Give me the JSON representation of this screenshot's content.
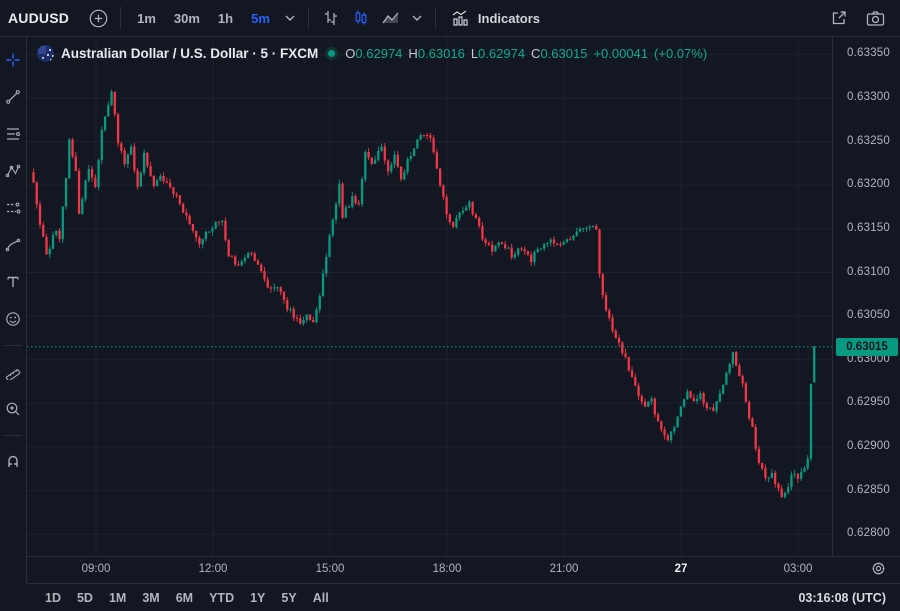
{
  "topbar": {
    "symbol": "AUDUSD",
    "intervals": [
      {
        "label": "1m",
        "active": false
      },
      {
        "label": "30m",
        "active": false
      },
      {
        "label": "1h",
        "active": false
      },
      {
        "label": "5m",
        "active": true
      }
    ],
    "indicators_label": "Indicators"
  },
  "legend": {
    "title_line": "Australian Dollar / U.S. Dollar · 5 · FXCM",
    "market_status": "open",
    "ohlc": {
      "o_label": "O",
      "o_value": "0.62974",
      "h_label": "H",
      "h_value": "0.63016",
      "l_label": "L",
      "l_value": "0.62974",
      "c_label": "C",
      "c_value": "0.63015",
      "change": "+0.00041",
      "change_pct": "(+0.07%)"
    }
  },
  "price_axis": {
    "labels": [
      "0.63350",
      "0.63300",
      "0.63250",
      "0.63200",
      "0.63150",
      "0.63100",
      "0.63050",
      "0.63000",
      "0.62950",
      "0.62900",
      "0.62850",
      "0.62800"
    ],
    "current_price_label": "0.63015"
  },
  "time_axis": {
    "labels": [
      {
        "text": "09:00",
        "emphasis": false
      },
      {
        "text": "12:00",
        "emphasis": false
      },
      {
        "text": "15:00",
        "emphasis": false
      },
      {
        "text": "18:00",
        "emphasis": false
      },
      {
        "text": "21:00",
        "emphasis": false
      },
      {
        "text": "27",
        "emphasis": true
      },
      {
        "text": "03:00",
        "emphasis": false
      }
    ]
  },
  "bottombar": {
    "ranges": [
      "1D",
      "5D",
      "1M",
      "3M",
      "6M",
      "YTD",
      "1Y",
      "5Y",
      "All"
    ],
    "clock": "03:16:08 (UTC)"
  },
  "sidebar": {
    "tools": [
      "crosshair",
      "trend-line",
      "fib-retracement",
      "xabcd-pattern",
      "forecast",
      "arc",
      "text",
      "emoji",
      "divider",
      "ruler",
      "zoom-in",
      "divider",
      "magnet"
    ]
  },
  "colors": {
    "background": "#131722",
    "grid": "#1e2230",
    "up": "#089981",
    "down": "#f23645",
    "accent_blue": "#2962ff",
    "badge_bg": "#089981",
    "axis_text": "#b2b5be"
  },
  "chart_data": {
    "type": "candlestick",
    "title": "Australian Dollar / U.S. Dollar",
    "symbol": "AUDUSD",
    "interval": "5",
    "exchange": "FXCM",
    "price_ticks": [
      0.6335,
      0.633,
      0.6325,
      0.632,
      0.6315,
      0.631,
      0.6305,
      0.63,
      0.6295,
      0.629,
      0.6285,
      0.628
    ],
    "time_ticks": [
      "09:00",
      "12:00",
      "15:00",
      "18:00",
      "21:00",
      "27",
      "03:00"
    ],
    "y_top_price": 0.6337,
    "y_bottom_price": 0.62775,
    "current_price": 0.63015,
    "last_candle": {
      "open": 0.62974,
      "high": 0.63016,
      "low": 0.62974,
      "close": 0.63015
    },
    "session_shape_note": "price path anchors as [candle_index, price]; 5m candles from ~07:25 to 03:20 UTC",
    "n_candles": 241,
    "anchors": [
      [
        0,
        0.63205
      ],
      [
        2,
        0.63155
      ],
      [
        4,
        0.6312
      ],
      [
        7,
        0.6315
      ],
      [
        8,
        0.63135
      ],
      [
        11,
        0.6325
      ],
      [
        13,
        0.63215
      ],
      [
        14,
        0.6317
      ],
      [
        17,
        0.6322
      ],
      [
        19,
        0.632
      ],
      [
        21,
        0.6326
      ],
      [
        24,
        0.6331
      ],
      [
        26,
        0.6325
      ],
      [
        28,
        0.63225
      ],
      [
        30,
        0.63245
      ],
      [
        32,
        0.63195
      ],
      [
        34,
        0.63235
      ],
      [
        37,
        0.632
      ],
      [
        39,
        0.6321
      ],
      [
        42,
        0.63195
      ],
      [
        45,
        0.6318
      ],
      [
        48,
        0.63155
      ],
      [
        51,
        0.6313
      ],
      [
        54,
        0.6315
      ],
      [
        58,
        0.6316
      ],
      [
        60,
        0.6312
      ],
      [
        63,
        0.63105
      ],
      [
        66,
        0.63125
      ],
      [
        69,
        0.6311
      ],
      [
        72,
        0.6308
      ],
      [
        75,
        0.63085
      ],
      [
        78,
        0.6306
      ],
      [
        82,
        0.6304
      ],
      [
        84,
        0.6305
      ],
      [
        86,
        0.63045
      ],
      [
        88,
        0.63075
      ],
      [
        91,
        0.6314
      ],
      [
        94,
        0.632
      ],
      [
        95,
        0.63165
      ],
      [
        98,
        0.63185
      ],
      [
        100,
        0.6318
      ],
      [
        102,
        0.6324
      ],
      [
        104,
        0.63225
      ],
      [
        107,
        0.63245
      ],
      [
        109,
        0.63215
      ],
      [
        111,
        0.63235
      ],
      [
        113,
        0.63205
      ],
      [
        115,
        0.6323
      ],
      [
        118,
        0.6325
      ],
      [
        120,
        0.6326
      ],
      [
        122,
        0.63255
      ],
      [
        124,
        0.6322
      ],
      [
        127,
        0.63165
      ],
      [
        129,
        0.6315
      ],
      [
        131,
        0.6317
      ],
      [
        134,
        0.6318
      ],
      [
        136,
        0.6316
      ],
      [
        138,
        0.6314
      ],
      [
        141,
        0.63125
      ],
      [
        144,
        0.63135
      ],
      [
        147,
        0.6312
      ],
      [
        150,
        0.6313
      ],
      [
        153,
        0.63115
      ],
      [
        156,
        0.6313
      ],
      [
        159,
        0.63135
      ],
      [
        162,
        0.6313
      ],
      [
        165,
        0.6314
      ],
      [
        168,
        0.6315
      ],
      [
        171,
        0.63155
      ],
      [
        173,
        0.6315
      ],
      [
        174,
        0.631
      ],
      [
        176,
        0.63055
      ],
      [
        177,
        0.63045
      ],
      [
        178,
        0.63035
      ],
      [
        180,
        0.6302
      ],
      [
        182,
        0.63
      ],
      [
        183,
        0.62985
      ],
      [
        185,
        0.6297
      ],
      [
        187,
        0.6295
      ],
      [
        188,
        0.62945
      ],
      [
        190,
        0.62955
      ],
      [
        191,
        0.62935
      ],
      [
        193,
        0.6292
      ],
      [
        195,
        0.6291
      ],
      [
        197,
        0.62925
      ],
      [
        199,
        0.62945
      ],
      [
        201,
        0.62965
      ],
      [
        203,
        0.6295
      ],
      [
        205,
        0.6296
      ],
      [
        207,
        0.62945
      ],
      [
        209,
        0.6294
      ],
      [
        211,
        0.6296
      ],
      [
        213,
        0.62985
      ],
      [
        215,
        0.6301
      ],
      [
        216,
        0.62995
      ],
      [
        218,
        0.6297
      ],
      [
        219,
        0.6295
      ],
      [
        221,
        0.6292
      ],
      [
        222,
        0.62895
      ],
      [
        224,
        0.62875
      ],
      [
        225,
        0.62865
      ],
      [
        227,
        0.6287
      ],
      [
        229,
        0.6285
      ],
      [
        230,
        0.6284
      ],
      [
        232,
        0.62855
      ],
      [
        233,
        0.6287
      ],
      [
        235,
        0.62865
      ],
      [
        237,
        0.62875
      ],
      [
        238,
        0.62885
      ],
      [
        239,
        0.62974
      ],
      [
        240,
        0.63015
      ]
    ]
  }
}
